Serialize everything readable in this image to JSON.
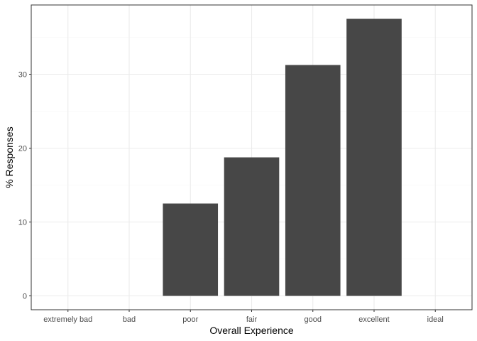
{
  "chart_data": {
    "type": "bar",
    "title": "",
    "xlabel": "Overall Experience",
    "ylabel": "% Responses",
    "categories": [
      "extremely bad",
      "bad",
      "poor",
      "fair",
      "good",
      "excellent",
      "ideal"
    ],
    "values": [
      0,
      0,
      12.5,
      18.75,
      31.25,
      37.5,
      0
    ],
    "ylim": [
      -1.875,
      39.375
    ],
    "yticks": [
      0,
      10,
      20,
      30
    ],
    "ytick_labels": [
      "0",
      "10",
      "20",
      "30"
    ],
    "grid": true,
    "legend": "none",
    "colors": {
      "bar": "#474747",
      "panel_border": "#333333",
      "grid_major": "#ebebeb",
      "grid_minor": "#f5f5f5",
      "tick": "#333333"
    }
  }
}
